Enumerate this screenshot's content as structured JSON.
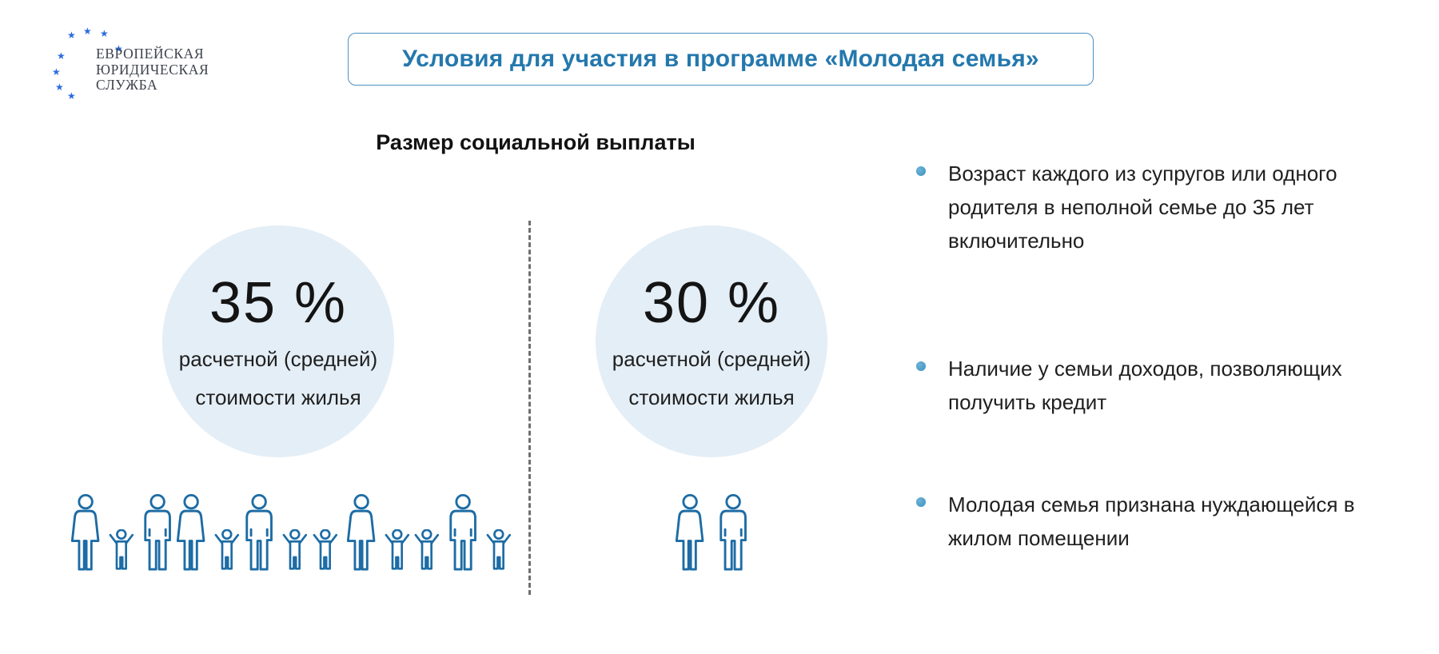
{
  "logo": {
    "line1": "ЕВРОПЕЙСКАЯ",
    "line2": "ЮРИДИЧЕСКАЯ",
    "line3": "СЛУЖБА"
  },
  "title": "Условия для участия в программе «Молодая семья»",
  "payment": {
    "heading": "Размер социальной выплаты",
    "options": [
      {
        "percent": "35 %",
        "desc_line1": "расчетной (средней)",
        "desc_line2": "стоимости жилья",
        "families": [
          [
            "woman",
            "child",
            "man"
          ],
          [
            "woman",
            "child"
          ],
          [
            "man",
            "child"
          ],
          [
            "child",
            "woman",
            "child"
          ],
          [
            "child",
            "man",
            "child"
          ]
        ]
      },
      {
        "percent": "30 %",
        "desc_line1": "расчетной (средней)",
        "desc_line2": "стоимости жилья",
        "families": [
          [
            "woman",
            "man"
          ]
        ]
      }
    ]
  },
  "conditions": [
    "Возраст каждого из супругов или одного родителя в неполной семье до 35 лет включительно",
    "Наличие у семьи доходов, позволяющих получить кредит",
    "Молодая семья признана нуждающейся в жилом помещении"
  ],
  "colors": {
    "accent_blue": "#2478ad",
    "icon_blue": "#1d6ca5",
    "bullet_blue": "#4a9bc6",
    "circle_fill": "#e4eef6",
    "star_blue": "#2b6be0"
  }
}
